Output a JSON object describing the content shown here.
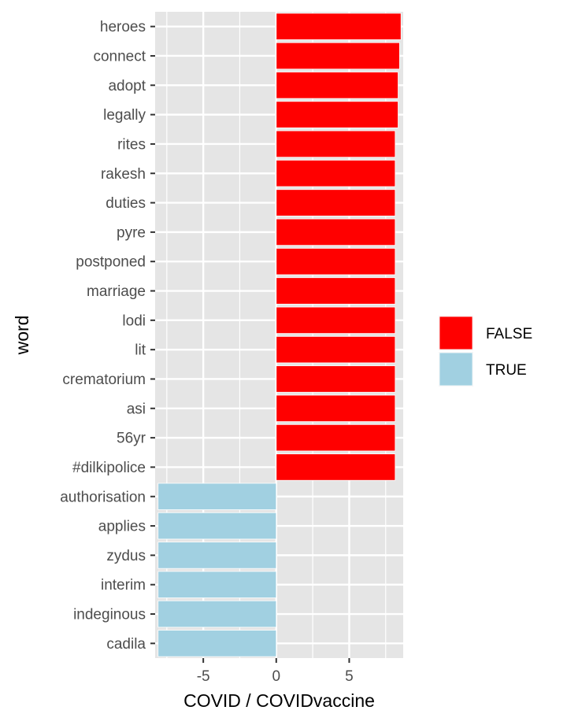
{
  "chart_data": {
    "type": "bar",
    "orientation": "horizontal",
    "title": "",
    "xlabel": "COVID / COVIDvaccine",
    "ylabel": "word",
    "xlim": [
      -8.3,
      8.7
    ],
    "xticks": [
      -5,
      0,
      5
    ],
    "xtick_labels": [
      "-5",
      "0",
      "5"
    ],
    "grid": true,
    "legend": {
      "placement": "right",
      "entries": [
        {
          "label": "FALSE",
          "color": "#ff0000"
        },
        {
          "label": "TRUE",
          "color": "#a1d0e1"
        }
      ]
    },
    "categories": [
      "heroes",
      "connect",
      "adopt",
      "legally",
      "rites",
      "rakesh",
      "duties",
      "pyre",
      "postponed",
      "marriage",
      "lodi",
      "lit",
      "crematorium",
      "asi",
      "56yr",
      "#dilkipolice",
      "authorisation",
      "applies",
      "zydus",
      "interim",
      "indeginous",
      "cadila"
    ],
    "values": [
      8.55,
      8.45,
      8.35,
      8.35,
      8.15,
      8.15,
      8.15,
      8.15,
      8.15,
      8.15,
      8.15,
      8.15,
      8.15,
      8.15,
      8.15,
      8.15,
      -8.1,
      -8.1,
      -8.1,
      -8.1,
      -8.1,
      -8.1
    ],
    "group": [
      "FALSE",
      "FALSE",
      "FALSE",
      "FALSE",
      "FALSE",
      "FALSE",
      "FALSE",
      "FALSE",
      "FALSE",
      "FALSE",
      "FALSE",
      "FALSE",
      "FALSE",
      "FALSE",
      "FALSE",
      "FALSE",
      "TRUE",
      "TRUE",
      "TRUE",
      "TRUE",
      "TRUE",
      "TRUE"
    ]
  },
  "colors": {
    "panel_background": "#e5e5e5",
    "grid": "#ffffff",
    "tick": "#333333"
  }
}
